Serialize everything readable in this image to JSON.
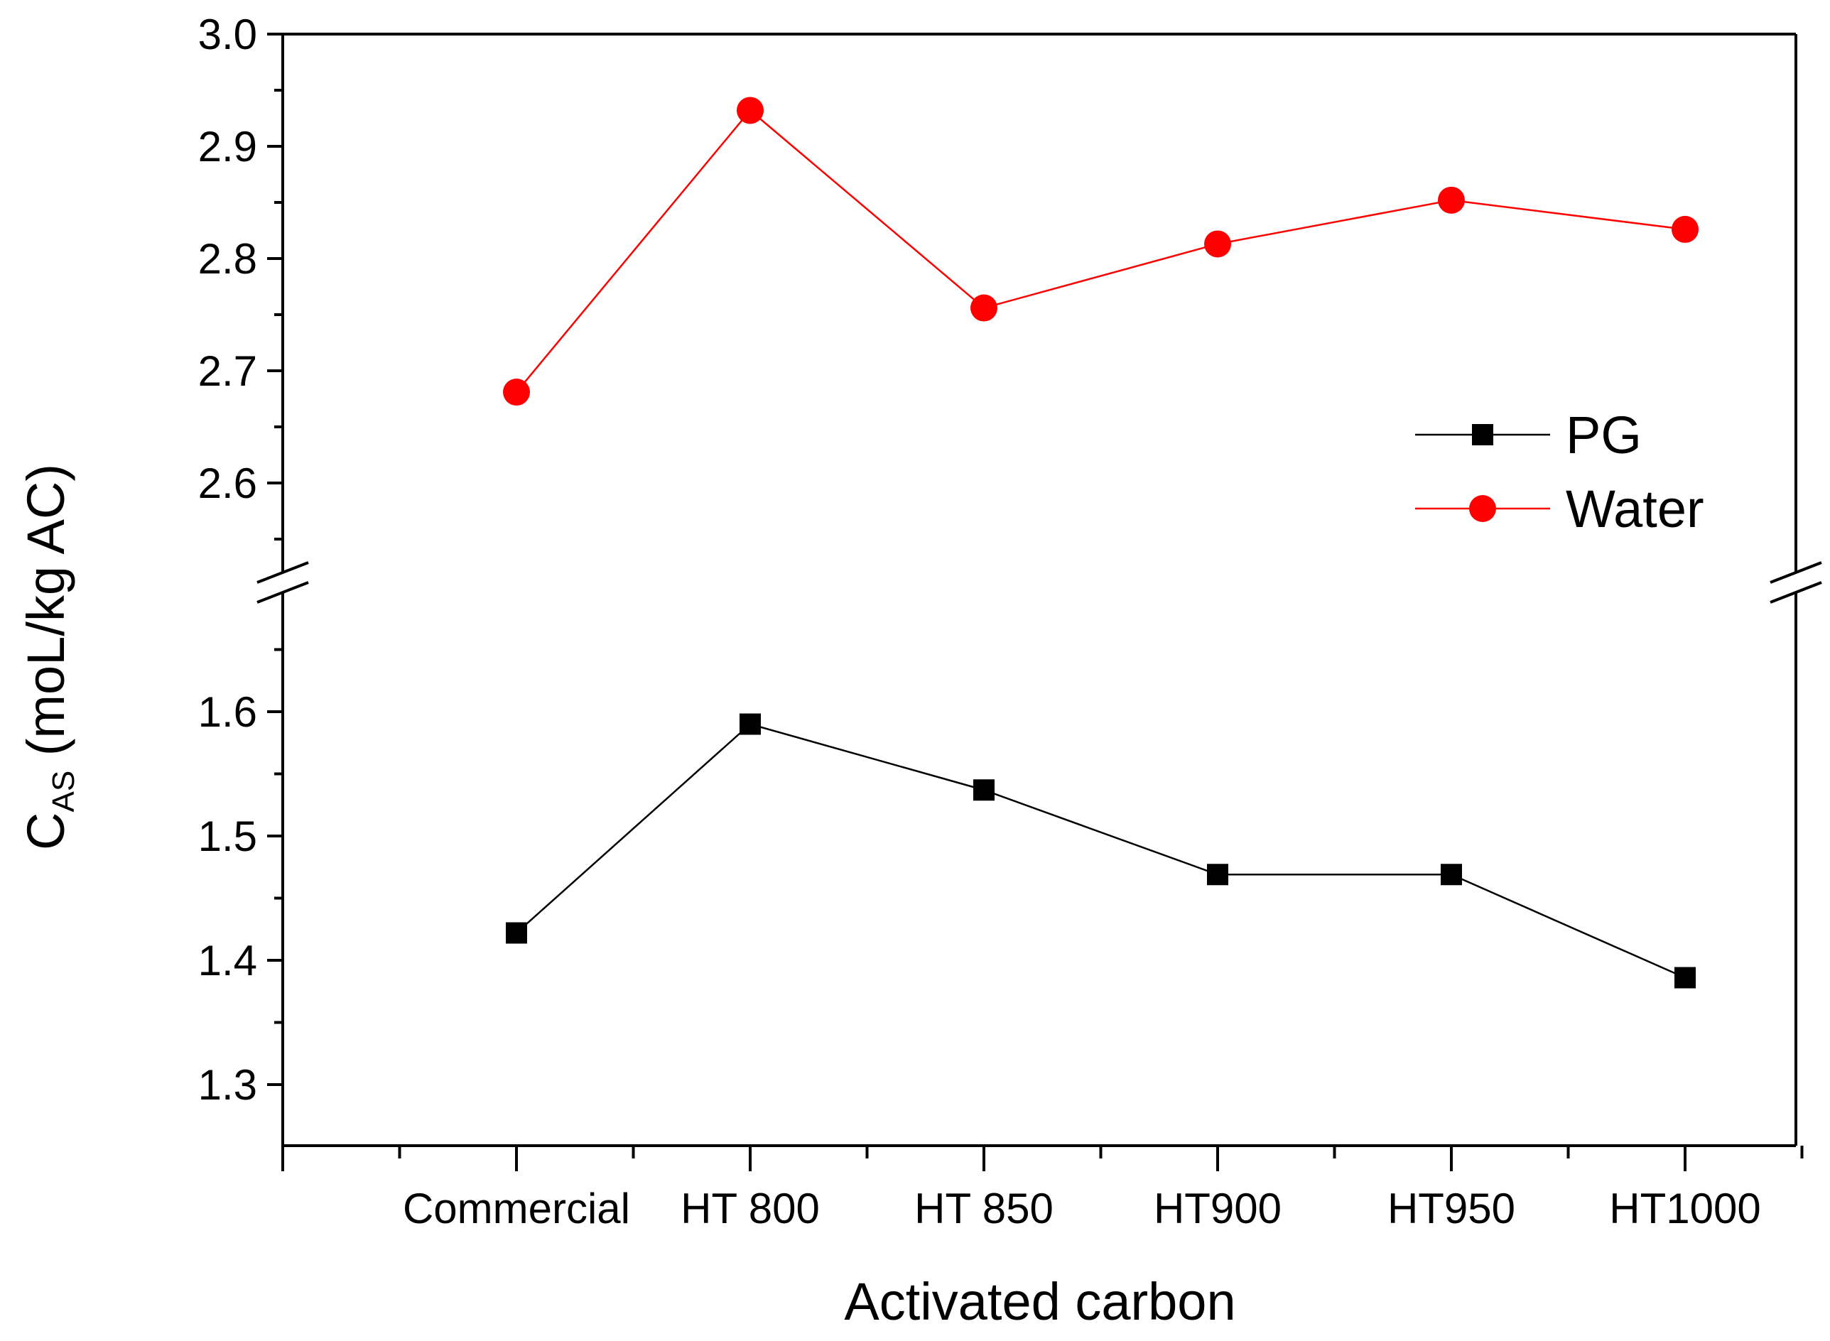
{
  "chart_data": {
    "type": "line",
    "title": "",
    "xlabel": "Activated carbon",
    "ylabel_main": "C",
    "ylabel_sub": "AS",
    "ylabel_rest": " (moL/kg AC)",
    "categories": [
      "Commercial",
      "HT 800",
      "HT 850",
      "HT900",
      "HT950",
      "HT1000"
    ],
    "series": [
      {
        "name": "PG",
        "color": "#000000",
        "marker": "square",
        "values": [
          1.422,
          1.59,
          1.537,
          1.469,
          1.469,
          1.386
        ]
      },
      {
        "name": "Water",
        "color": "#ff0000",
        "marker": "circle",
        "values": [
          2.681,
          2.932,
          2.756,
          2.813,
          2.852,
          2.826
        ]
      }
    ],
    "y_axis_broken": true,
    "y_segments": [
      {
        "range": [
          1.25,
          1.675
        ],
        "ticks": [
          "1.3",
          "1.4",
          "1.5",
          "1.6"
        ]
      },
      {
        "range": [
          2.51,
          3.0
        ],
        "ticks": [
          "2.6",
          "2.7",
          "2.8",
          "2.9",
          "3.0"
        ]
      }
    ],
    "legend_position": "right-middle",
    "grid": false
  }
}
